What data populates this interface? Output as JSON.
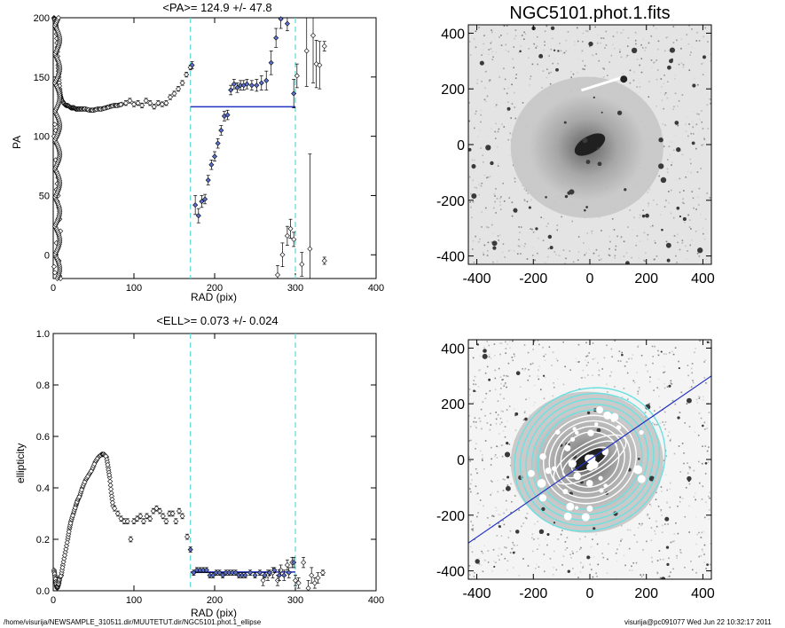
{
  "footer": {
    "path": "/home/visurija/NEWSAMPLE_310511.dir/MUUTETUT.dir/NGC5101.phot.1_ellipse",
    "stamp": "visurija@pc091077  Wed Jun 22 10:32:17 2011"
  },
  "image_title": "NGC5101.phot.1.fits",
  "colors": {
    "fit_line": "#2030c0",
    "dashed": "#5fd7d7",
    "contour": "#6ee0e0",
    "selected_marker": "#5a70d0"
  },
  "chart_data": [
    {
      "type": "scatter",
      "id": "pa",
      "title": "<PA>= 124.9 +/-  47.8",
      "xlabel": "RAD (pix)",
      "ylabel": "PA",
      "xlim": [
        0,
        400
      ],
      "ylim": [
        -20,
        200
      ],
      "xticks": [
        0,
        100,
        200,
        300,
        400
      ],
      "yticks": [
        0,
        50,
        100,
        150,
        200
      ],
      "mean_line": {
        "x": [
          170,
          300
        ],
        "y": 124.9
      },
      "vlines": [
        170,
        300
      ],
      "inner_curve": {
        "x": [
          1,
          2,
          3,
          4,
          5,
          6,
          7,
          8,
          9,
          10,
          12,
          14,
          16,
          18,
          20,
          22,
          24,
          26,
          28,
          30,
          33,
          36,
          40,
          45,
          50,
          55,
          60,
          65,
          70,
          75,
          80,
          85
        ],
        "y": [
          200,
          198,
          195,
          190,
          175,
          160,
          150,
          140,
          134,
          131,
          129,
          127,
          126,
          126,
          125,
          124,
          124,
          124,
          123,
          123,
          123,
          123,
          123,
          122,
          122,
          123,
          123,
          124,
          125,
          126,
          126,
          127
        ]
      },
      "side_scatter": {
        "x": [
          1,
          1,
          2,
          2,
          3,
          3,
          4,
          4,
          5,
          5,
          6,
          6,
          7,
          7,
          8,
          8,
          9,
          9,
          2,
          3,
          4,
          5,
          6
        ],
        "y": [
          100,
          -10,
          95,
          -15,
          80,
          0,
          70,
          10,
          60,
          20,
          50,
          30,
          40,
          -5,
          30,
          -18,
          20,
          -20,
          110,
          105,
          55,
          45,
          65
        ]
      },
      "points": [
        {
          "x": 90,
          "y": 128,
          "err": 2
        },
        {
          "x": 95,
          "y": 130,
          "err": 2
        },
        {
          "x": 100,
          "y": 127,
          "err": 2
        },
        {
          "x": 105,
          "y": 128,
          "err": 2
        },
        {
          "x": 110,
          "y": 126,
          "err": 2
        },
        {
          "x": 115,
          "y": 130,
          "err": 2
        },
        {
          "x": 120,
          "y": 128,
          "err": 2
        },
        {
          "x": 125,
          "y": 125,
          "err": 2
        },
        {
          "x": 130,
          "y": 128,
          "err": 2
        },
        {
          "x": 135,
          "y": 127,
          "err": 2
        },
        {
          "x": 140,
          "y": 128,
          "err": 2
        },
        {
          "x": 145,
          "y": 133,
          "err": 2
        },
        {
          "x": 150,
          "y": 136,
          "err": 2
        },
        {
          "x": 155,
          "y": 140,
          "err": 2
        },
        {
          "x": 160,
          "y": 145,
          "err": 2
        },
        {
          "x": 165,
          "y": 152,
          "err": 2
        },
        {
          "x": 170,
          "y": 158,
          "err": 2
        }
      ],
      "selected": [
        {
          "x": 172,
          "y": 160,
          "err": 3
        },
        {
          "x": 176,
          "y": 42,
          "err": 8
        },
        {
          "x": 180,
          "y": 33,
          "err": 6
        },
        {
          "x": 184,
          "y": 45,
          "err": 5
        },
        {
          "x": 188,
          "y": 47,
          "err": 4
        },
        {
          "x": 192,
          "y": 63,
          "err": 4
        },
        {
          "x": 196,
          "y": 76,
          "err": 4
        },
        {
          "x": 200,
          "y": 83,
          "err": 4
        },
        {
          "x": 204,
          "y": 94,
          "err": 4
        },
        {
          "x": 208,
          "y": 105,
          "err": 4
        },
        {
          "x": 212,
          "y": 117,
          "err": 4
        },
        {
          "x": 216,
          "y": 118,
          "err": 4
        },
        {
          "x": 220,
          "y": 139,
          "err": 4
        },
        {
          "x": 224,
          "y": 144,
          "err": 4
        },
        {
          "x": 228,
          "y": 141,
          "err": 4
        },
        {
          "x": 232,
          "y": 143,
          "err": 4
        },
        {
          "x": 236,
          "y": 143,
          "err": 4
        },
        {
          "x": 240,
          "y": 144,
          "err": 4
        },
        {
          "x": 246,
          "y": 143,
          "err": 4
        },
        {
          "x": 252,
          "y": 143,
          "err": 5
        },
        {
          "x": 258,
          "y": 145,
          "err": 6
        },
        {
          "x": 264,
          "y": 147,
          "err": 8
        },
        {
          "x": 270,
          "y": 162,
          "err": 10
        },
        {
          "x": 276,
          "y": 183,
          "err": 8
        },
        {
          "x": 282,
          "y": 199,
          "err": 8
        },
        {
          "x": 290,
          "y": 195,
          "err": 6
        },
        {
          "x": 298,
          "y": 136,
          "err": 12
        }
      ],
      "outer_points": [
        {
          "x": 278,
          "y": -17,
          "err": 8
        },
        {
          "x": 284,
          "y": 0,
          "err": 10
        },
        {
          "x": 290,
          "y": 16,
          "err": 8
        },
        {
          "x": 294,
          "y": 22,
          "err": 8
        },
        {
          "x": 298,
          "y": 13,
          "err": 6
        },
        {
          "x": 302,
          "y": 151,
          "err": 10
        },
        {
          "x": 308,
          "y": -8,
          "err": 10
        },
        {
          "x": 314,
          "y": 172,
          "err": 30
        },
        {
          "x": 318,
          "y": 5,
          "err": 80
        },
        {
          "x": 322,
          "y": 185,
          "err": 40
        },
        {
          "x": 326,
          "y": 161,
          "err": 20
        },
        {
          "x": 330,
          "y": 160,
          "err": 20
        },
        {
          "x": 336,
          "y": 176,
          "err": 4
        },
        {
          "x": 336,
          "y": -5,
          "err": 3
        }
      ]
    },
    {
      "type": "scatter",
      "id": "ell",
      "title": "<ELL>= 0.073 +/-  0.024",
      "xlabel": "RAD (pix)",
      "ylabel": "ellipticity",
      "xlim": [
        0,
        400
      ],
      "ylim": [
        0,
        1.0
      ],
      "xticks": [
        0,
        100,
        200,
        300,
        400
      ],
      "yticks": [
        0.0,
        0.2,
        0.4,
        0.6,
        0.8,
        1.0
      ],
      "mean_line": {
        "x": [
          170,
          300
        ],
        "y": 0.073
      },
      "vlines": [
        170,
        300
      ],
      "inner_curve": {
        "x": [
          1,
          2,
          3,
          4,
          5,
          6,
          7,
          8,
          10,
          12,
          15,
          18,
          20,
          22,
          25,
          28,
          30,
          33,
          36,
          40,
          44,
          48,
          52,
          56,
          60,
          63,
          66,
          68,
          70,
          72,
          74
        ],
        "y": [
          0.08,
          0.06,
          0.04,
          0.02,
          0.01,
          0.02,
          0.03,
          0.05,
          0.06,
          0.1,
          0.15,
          0.2,
          0.24,
          0.27,
          0.3,
          0.33,
          0.35,
          0.37,
          0.4,
          0.43,
          0.45,
          0.47,
          0.5,
          0.52,
          0.53,
          0.53,
          0.52,
          0.48,
          0.44,
          0.38,
          0.33
        ]
      },
      "points": [
        {
          "x": 76,
          "y": 0.32,
          "err": 0.01
        },
        {
          "x": 80,
          "y": 0.3,
          "err": 0.01
        },
        {
          "x": 84,
          "y": 0.28,
          "err": 0.01
        },
        {
          "x": 88,
          "y": 0.27,
          "err": 0.01
        },
        {
          "x": 92,
          "y": 0.27,
          "err": 0.01
        },
        {
          "x": 96,
          "y": 0.2,
          "err": 0.01
        },
        {
          "x": 100,
          "y": 0.27,
          "err": 0.01
        },
        {
          "x": 104,
          "y": 0.28,
          "err": 0.01
        },
        {
          "x": 108,
          "y": 0.29,
          "err": 0.01
        },
        {
          "x": 112,
          "y": 0.27,
          "err": 0.01
        },
        {
          "x": 116,
          "y": 0.29,
          "err": 0.01
        },
        {
          "x": 120,
          "y": 0.28,
          "err": 0.01
        },
        {
          "x": 124,
          "y": 0.31,
          "err": 0.01
        },
        {
          "x": 128,
          "y": 0.32,
          "err": 0.01
        },
        {
          "x": 132,
          "y": 0.31,
          "err": 0.01
        },
        {
          "x": 136,
          "y": 0.29,
          "err": 0.01
        },
        {
          "x": 140,
          "y": 0.27,
          "err": 0.01
        },
        {
          "x": 144,
          "y": 0.3,
          "err": 0.01
        },
        {
          "x": 148,
          "y": 0.3,
          "err": 0.01
        },
        {
          "x": 152,
          "y": 0.27,
          "err": 0.01
        },
        {
          "x": 156,
          "y": 0.31,
          "err": 0.01
        },
        {
          "x": 160,
          "y": 0.29,
          "err": 0.01
        },
        {
          "x": 166,
          "y": 0.21,
          "err": 0.01
        }
      ],
      "selected": [
        {
          "x": 170,
          "y": 0.16,
          "err": 0.01
        },
        {
          "x": 174,
          "y": 0.07,
          "err": 0.01
        },
        {
          "x": 178,
          "y": 0.08,
          "err": 0.01
        },
        {
          "x": 182,
          "y": 0.08,
          "err": 0.01
        },
        {
          "x": 186,
          "y": 0.08,
          "err": 0.01
        },
        {
          "x": 190,
          "y": 0.08,
          "err": 0.01
        },
        {
          "x": 194,
          "y": 0.06,
          "err": 0.01
        },
        {
          "x": 198,
          "y": 0.06,
          "err": 0.01
        },
        {
          "x": 202,
          "y": 0.07,
          "err": 0.01
        },
        {
          "x": 206,
          "y": 0.07,
          "err": 0.01
        },
        {
          "x": 210,
          "y": 0.06,
          "err": 0.01
        },
        {
          "x": 214,
          "y": 0.07,
          "err": 0.01
        },
        {
          "x": 218,
          "y": 0.07,
          "err": 0.01
        },
        {
          "x": 222,
          "y": 0.07,
          "err": 0.01
        },
        {
          "x": 226,
          "y": 0.07,
          "err": 0.01
        },
        {
          "x": 230,
          "y": 0.06,
          "err": 0.01
        },
        {
          "x": 234,
          "y": 0.06,
          "err": 0.01
        },
        {
          "x": 238,
          "y": 0.06,
          "err": 0.01
        },
        {
          "x": 244,
          "y": 0.07,
          "err": 0.01
        },
        {
          "x": 250,
          "y": 0.06,
          "err": 0.01
        },
        {
          "x": 256,
          "y": 0.07,
          "err": 0.01
        },
        {
          "x": 262,
          "y": 0.06,
          "err": 0.01
        },
        {
          "x": 268,
          "y": 0.07,
          "err": 0.01
        },
        {
          "x": 274,
          "y": 0.08,
          "err": 0.01
        },
        {
          "x": 280,
          "y": 0.06,
          "err": 0.02
        },
        {
          "x": 286,
          "y": 0.06,
          "err": 0.02
        },
        {
          "x": 292,
          "y": 0.07,
          "err": 0.02
        },
        {
          "x": 298,
          "y": 0.11,
          "err": 0.02
        }
      ],
      "outer_points": [
        {
          "x": 260,
          "y": 0.04,
          "err": 0.02
        },
        {
          "x": 266,
          "y": 0.06,
          "err": 0.02
        },
        {
          "x": 272,
          "y": 0.07,
          "err": 0.02
        },
        {
          "x": 278,
          "y": 0.04,
          "err": 0.02
        },
        {
          "x": 282,
          "y": 0.08,
          "err": 0.02
        },
        {
          "x": 290,
          "y": 0.1,
          "err": 0.02
        },
        {
          "x": 296,
          "y": 0.11,
          "err": 0.02
        },
        {
          "x": 300,
          "y": 0.04,
          "err": 0.02
        },
        {
          "x": 304,
          "y": 0.03,
          "err": 0.02
        },
        {
          "x": 310,
          "y": 0.11,
          "err": 0.02
        },
        {
          "x": 316,
          "y": 0.01,
          "err": 0.03
        },
        {
          "x": 320,
          "y": 0.06,
          "err": 0.03
        },
        {
          "x": 324,
          "y": 0.03,
          "err": 0.02
        },
        {
          "x": 328,
          "y": 0.05,
          "err": 0.02
        },
        {
          "x": 334,
          "y": 0.07,
          "err": 0.01
        }
      ]
    },
    {
      "type": "image",
      "id": "img1",
      "xticks": [
        -400,
        -200,
        0,
        200,
        400
      ],
      "yticks": [
        -400,
        -200,
        0,
        200,
        400
      ],
      "xlim": [
        -430,
        430
      ],
      "ylim": [
        -430,
        430
      ]
    },
    {
      "type": "image",
      "id": "img2",
      "xticks": [
        -400,
        -200,
        0,
        200,
        400
      ],
      "yticks": [
        -400,
        -200,
        0,
        200,
        400
      ],
      "xlim": [
        -430,
        430
      ],
      "ylim": [
        -430,
        430
      ],
      "fit_line_angle_deg": 34.9,
      "contour_radii": [
        40,
        60,
        80,
        100,
        120,
        140,
        160,
        180,
        200,
        220,
        240,
        260
      ]
    }
  ]
}
